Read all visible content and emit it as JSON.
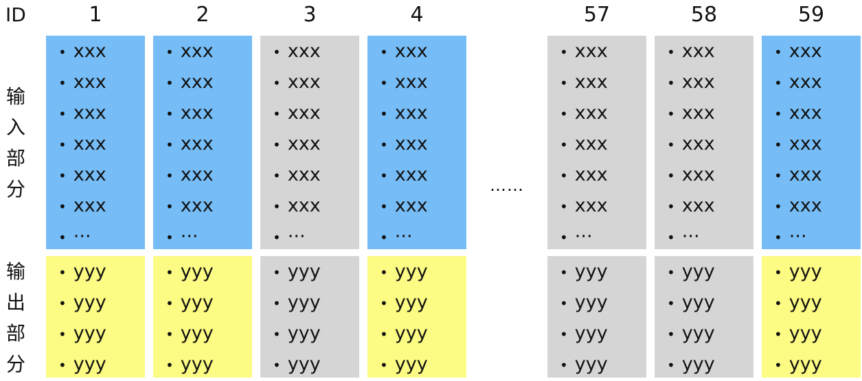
{
  "id_label": "ID",
  "row_labels": {
    "input": [
      "输",
      "入",
      "部",
      "分"
    ],
    "output": [
      "输",
      "出",
      "部",
      "分"
    ]
  },
  "gap_ellipsis": "……",
  "colors": {
    "highlight_input": "#76bdf7",
    "highlight_output": "#fcfb83",
    "plain": "#d5d5d5"
  },
  "bullet": "•",
  "input_items": [
    "xxx",
    "xxx",
    "xxx",
    "xxx",
    "xxx",
    "xxx",
    "···"
  ],
  "output_items": [
    "yyy",
    "yyy",
    "yyy",
    "yyy"
  ],
  "columns": [
    {
      "id": "1",
      "highlighted": true
    },
    {
      "id": "2",
      "highlighted": true
    },
    {
      "id": "3",
      "highlighted": false
    },
    {
      "id": "4",
      "highlighted": true
    },
    {
      "id": "57",
      "highlighted": false
    },
    {
      "id": "58",
      "highlighted": false
    },
    {
      "id": "59",
      "highlighted": true
    }
  ]
}
